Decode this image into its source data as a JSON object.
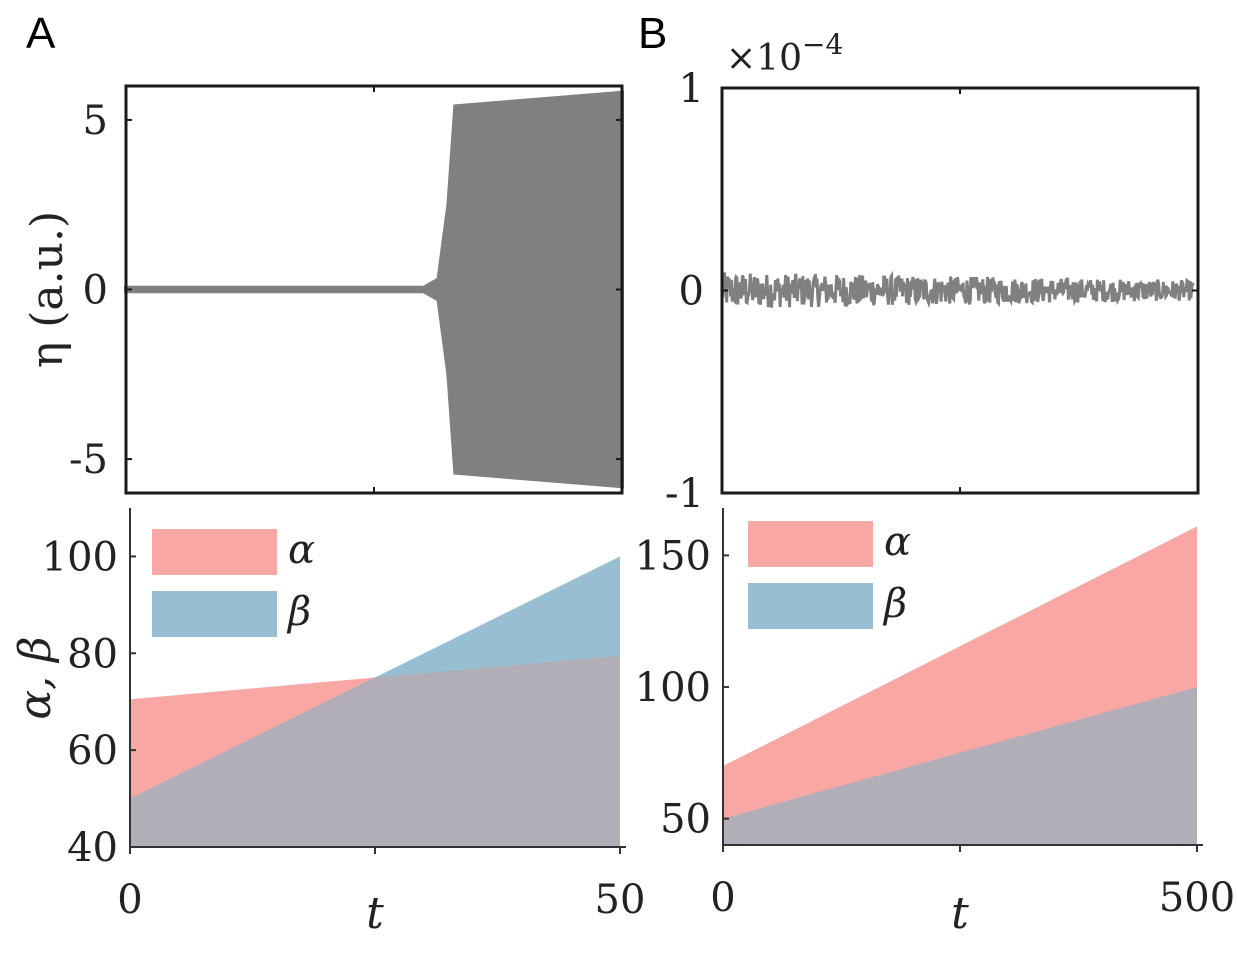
{
  "panels": {
    "A": "A",
    "B": "B"
  },
  "chart_data": [
    {
      "id": "A-top",
      "type": "line",
      "ylabel": "η (a.u.)",
      "xlabel": "",
      "xlim": [
        0,
        50
      ],
      "ylim": [
        -6,
        6
      ],
      "y_ticks": [
        {
          "value": 5,
          "label": "5"
        },
        {
          "value": 0,
          "label": "0"
        },
        {
          "value": -5,
          "label": "-5"
        }
      ],
      "x_ticks_unlabeled": [
        25
      ],
      "series": [
        {
          "color": "#808080",
          "envelope": {
            "t": [
              0,
              30,
              31.5,
              32.5,
              33.2,
              50
            ],
            "upper": [
              0.05,
              0.05,
              0.3,
              2.5,
              5.4,
              5.8
            ],
            "lower": [
              -0.05,
              -0.05,
              -0.3,
              -2.5,
              -5.4,
              -5.8
            ]
          }
        }
      ]
    },
    {
      "id": "B-top",
      "type": "line",
      "ylabel": "",
      "xlabel": "",
      "xlim": [
        0,
        500
      ],
      "ylim": [
        -1,
        1
      ],
      "y_exponent_label": "×10",
      "y_exponent_power": "−4",
      "y_ticks": [
        {
          "value": 1,
          "label": "1"
        },
        {
          "value": 0,
          "label": "0"
        },
        {
          "value": -1,
          "label": "-1"
        }
      ],
      "x_ticks_unlabeled": [
        250,
        500
      ],
      "series": [
        {
          "color": "#808080",
          "amplitude_start": 0.09,
          "amplitude_end": 0.05
        }
      ]
    },
    {
      "id": "A-bottom",
      "type": "area",
      "ylabel": "α, β",
      "xlabel": "t",
      "xlim": [
        0,
        50
      ],
      "ylim": [
        40,
        110
      ],
      "y_ticks": [
        {
          "value": 100,
          "label": "100"
        },
        {
          "value": 80,
          "label": "80"
        },
        {
          "value": 60,
          "label": "60"
        },
        {
          "value": 40,
          "label": "40"
        }
      ],
      "x_ticks": [
        {
          "value": 0,
          "label": "0"
        },
        {
          "value": 25,
          "label": ""
        },
        {
          "value": 50,
          "label": "50"
        }
      ],
      "series": [
        {
          "name": "α",
          "x": [
            0,
            50
          ],
          "values": [
            70.5,
            79.5
          ],
          "color": "#f9a7a5"
        },
        {
          "name": "β",
          "x": [
            0,
            50
          ],
          "values": [
            50,
            100
          ],
          "color": "#97bfd1"
        }
      ],
      "overlap_color": "#b1aeb8",
      "legend": "top-left"
    },
    {
      "id": "B-bottom",
      "type": "area",
      "ylabel": "",
      "xlabel": "t",
      "xlim": [
        0,
        500
      ],
      "ylim": [
        40,
        168
      ],
      "y_ticks": [
        {
          "value": 150,
          "label": "150"
        },
        {
          "value": 100,
          "label": "100"
        },
        {
          "value": 50,
          "label": "50"
        }
      ],
      "x_ticks": [
        {
          "value": 0,
          "label": "0"
        },
        {
          "value": 250,
          "label": ""
        },
        {
          "value": 500,
          "label": "500"
        }
      ],
      "series": [
        {
          "name": "α",
          "x": [
            0,
            500
          ],
          "values": [
            70,
            161
          ],
          "color": "#f9a7a5"
        },
        {
          "name": "β",
          "x": [
            0,
            500
          ],
          "values": [
            50,
            100
          ],
          "color": "#97bfd1"
        }
      ],
      "overlap_color": "#b1aeb8",
      "legend": "top-left"
    }
  ]
}
